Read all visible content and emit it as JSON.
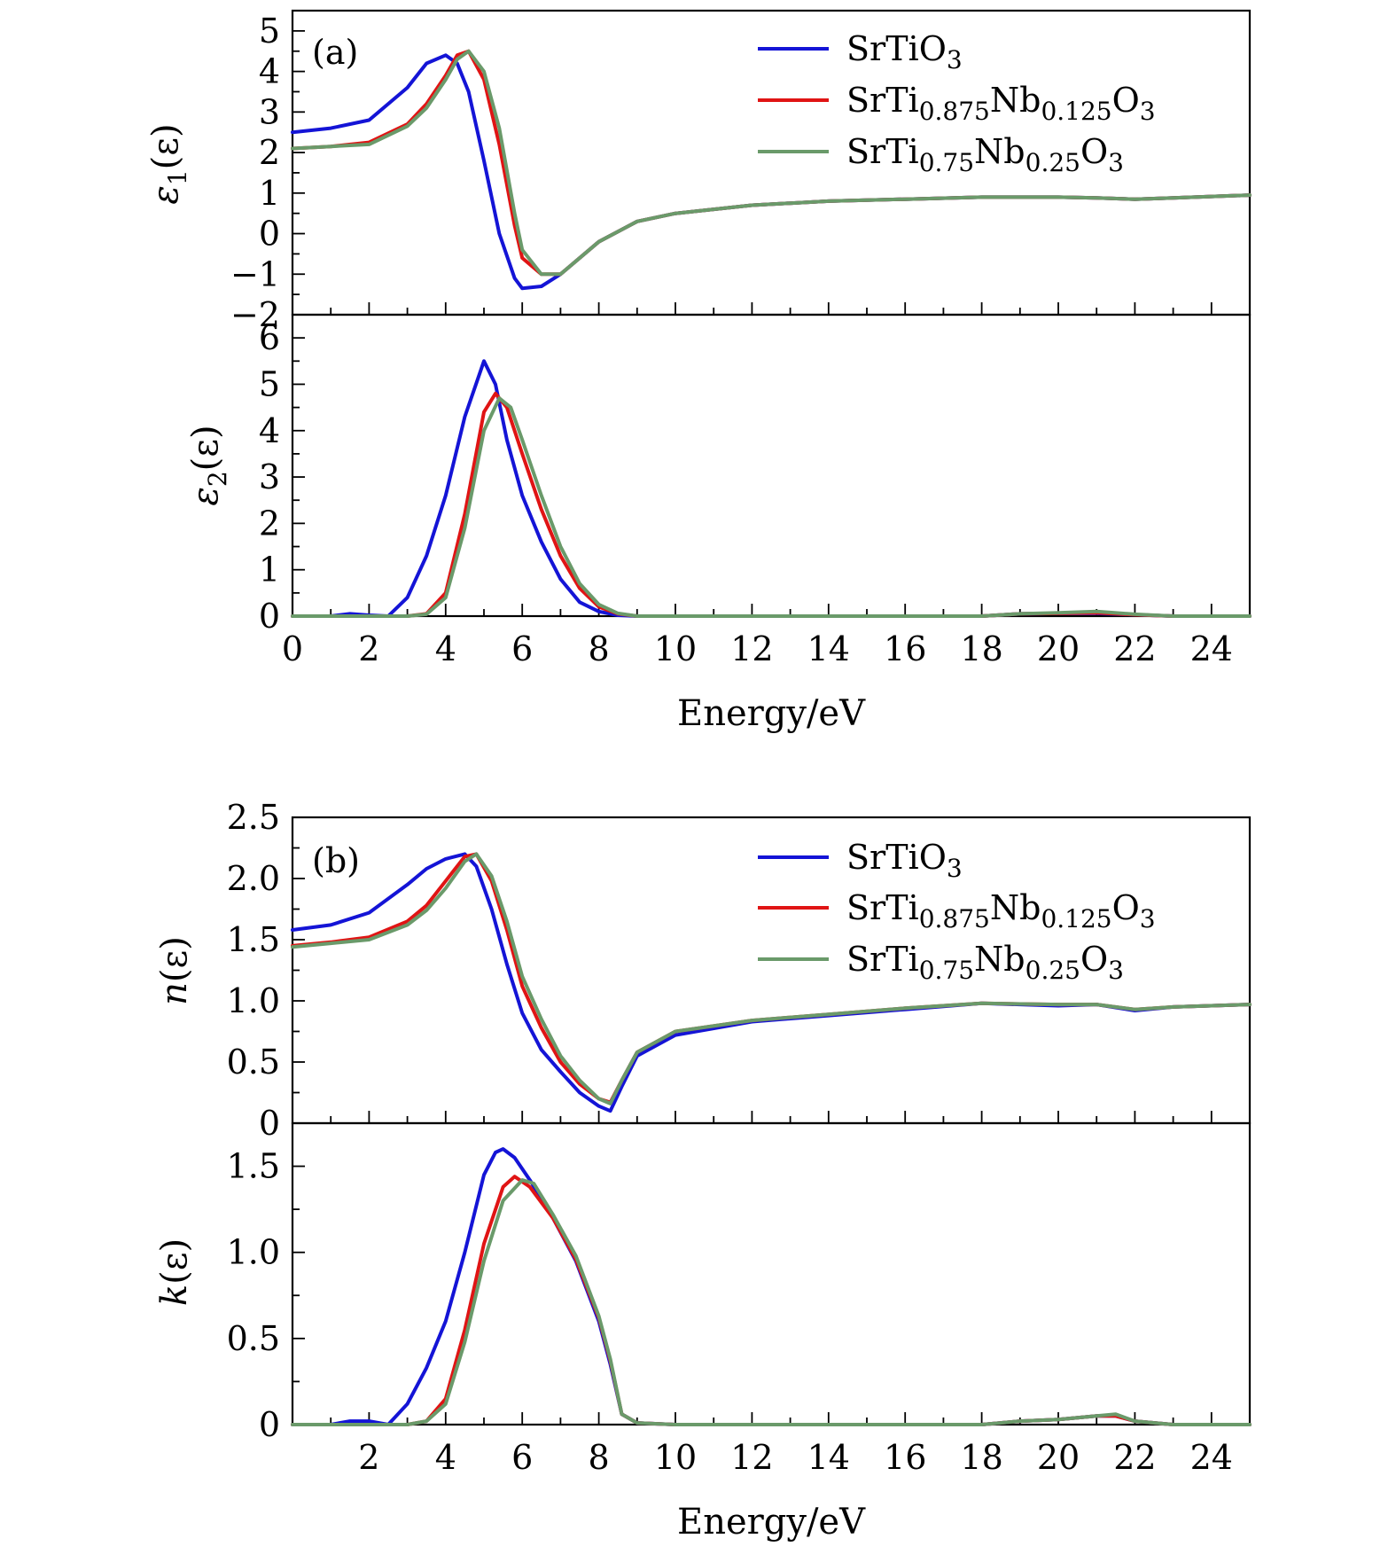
{
  "figure": {
    "colors": {
      "SrTiO3": "#1414d6",
      "Nb0125": "#e01414",
      "Nb025": "#6a9a6a"
    }
  },
  "chart_data": [
    {
      "type": "line",
      "panel_label": "(a)",
      "title": "",
      "xlabel": "Energy/eV",
      "ylabel_main": "ε",
      "ylabel_sub": "1",
      "ylabel_arg": "(ε)",
      "xlim": [
        0,
        25
      ],
      "ylim": [
        -2,
        5.5
      ],
      "xticks": [
        0,
        2,
        4,
        6,
        8,
        10,
        12,
        14,
        16,
        18,
        20,
        22,
        24
      ],
      "yticks": [
        -2,
        -1,
        0,
        1,
        2,
        3,
        4,
        5
      ],
      "ytick_labels": [
        "−2",
        "−1",
        "0",
        "1",
        "2",
        "3",
        "4",
        "5"
      ],
      "legend": [
        "SrTiO3",
        "SrTi0.875Nb0.125O3",
        "SrTi0.75Nb0.25O3"
      ],
      "series": [
        {
          "name": "SrTiO3",
          "x": [
            0,
            1,
            2,
            3,
            3.5,
            4,
            4.3,
            4.6,
            5,
            5.4,
            5.8,
            6,
            6.5,
            7,
            8,
            9,
            10,
            12,
            14,
            16,
            18,
            20,
            21,
            22,
            23,
            25
          ],
          "values": [
            2.5,
            2.6,
            2.8,
            3.6,
            4.2,
            4.4,
            4.2,
            3.5,
            1.8,
            0,
            -1.1,
            -1.35,
            -1.3,
            -1.0,
            -0.2,
            0.3,
            0.5,
            0.7,
            0.8,
            0.85,
            0.9,
            0.9,
            0.88,
            0.85,
            0.88,
            0.95
          ]
        },
        {
          "name": "SrTi0.875Nb0.125O3",
          "x": [
            0,
            1,
            2,
            3,
            3.5,
            4,
            4.3,
            4.6,
            5,
            5.4,
            5.8,
            6,
            6.5,
            7,
            8,
            9,
            10,
            12,
            14,
            16,
            18,
            20,
            21,
            22,
            23,
            25
          ],
          "values": [
            2.1,
            2.15,
            2.25,
            2.7,
            3.2,
            3.9,
            4.4,
            4.5,
            3.8,
            2.2,
            0.2,
            -0.6,
            -1.0,
            -1.0,
            -0.2,
            0.3,
            0.5,
            0.7,
            0.8,
            0.85,
            0.9,
            0.9,
            0.88,
            0.85,
            0.88,
            0.95
          ]
        },
        {
          "name": "SrTi0.75Nb0.25O3",
          "x": [
            0,
            1,
            2,
            3,
            3.5,
            4,
            4.3,
            4.6,
            5,
            5.4,
            5.8,
            6,
            6.5,
            7,
            8,
            9,
            10,
            12,
            14,
            16,
            18,
            20,
            21,
            22,
            23,
            25
          ],
          "values": [
            2.1,
            2.15,
            2.2,
            2.65,
            3.1,
            3.8,
            4.3,
            4.5,
            4.0,
            2.6,
            0.5,
            -0.4,
            -1.0,
            -1.0,
            -0.2,
            0.3,
            0.5,
            0.7,
            0.8,
            0.85,
            0.9,
            0.9,
            0.88,
            0.85,
            0.88,
            0.95
          ]
        }
      ]
    },
    {
      "type": "line",
      "title": "",
      "xlabel": "Energy/eV",
      "ylabel_main": "ε",
      "ylabel_sub": "2",
      "ylabel_arg": "(ε)",
      "xlim": [
        0,
        25
      ],
      "ylim": [
        0,
        6.5
      ],
      "xticks": [
        0,
        2,
        4,
        6,
        8,
        10,
        12,
        14,
        16,
        18,
        20,
        22,
        24
      ],
      "yticks": [
        0,
        1,
        2,
        3,
        4,
        5,
        6
      ],
      "ytick_labels": [
        "0",
        "1",
        "2",
        "3",
        "4",
        "5",
        "6"
      ],
      "series": [
        {
          "name": "SrTiO3",
          "x": [
            0,
            1,
            1.5,
            2,
            2.5,
            3,
            3.5,
            4,
            4.5,
            5,
            5.3,
            5.6,
            6,
            6.5,
            7,
            7.5,
            8,
            8.5,
            9,
            10,
            12,
            16,
            18,
            19,
            20,
            21,
            22,
            23,
            25
          ],
          "values": [
            0,
            0,
            0.05,
            0.02,
            0,
            0.4,
            1.3,
            2.6,
            4.3,
            5.5,
            5.0,
            3.8,
            2.6,
            1.6,
            0.8,
            0.3,
            0.1,
            0.02,
            0,
            0,
            0,
            0,
            0,
            0.05,
            0.06,
            0.06,
            0.03,
            0,
            0
          ]
        },
        {
          "name": "SrTi0.875Nb0.125O3",
          "x": [
            0,
            1,
            2,
            3,
            3.5,
            4,
            4.5,
            5,
            5.3,
            5.6,
            6,
            6.5,
            7,
            7.5,
            8,
            8.5,
            9,
            10,
            12,
            16,
            18,
            19,
            20,
            21,
            22,
            23,
            25
          ],
          "values": [
            0,
            0,
            0,
            0,
            0.05,
            0.5,
            2.2,
            4.4,
            4.8,
            4.5,
            3.5,
            2.3,
            1.3,
            0.6,
            0.2,
            0.05,
            0,
            0,
            0,
            0,
            0,
            0.05,
            0.06,
            0.07,
            0.03,
            0,
            0
          ]
        },
        {
          "name": "SrTi0.75Nb0.25O3",
          "x": [
            0,
            1,
            2,
            3,
            3.5,
            4,
            4.5,
            5,
            5.4,
            5.7,
            6,
            6.5,
            7,
            7.5,
            8,
            8.5,
            9,
            10,
            12,
            16,
            18,
            19,
            20,
            21,
            22,
            23,
            25
          ],
          "values": [
            0,
            0,
            0,
            0,
            0.04,
            0.4,
            1.9,
            4.0,
            4.7,
            4.5,
            3.8,
            2.6,
            1.5,
            0.7,
            0.25,
            0.06,
            0,
            0,
            0,
            0,
            0,
            0.05,
            0.07,
            0.1,
            0.04,
            0,
            0
          ]
        }
      ]
    },
    {
      "type": "line",
      "panel_label": "(b)",
      "title": "",
      "xlabel": "Energy/eV",
      "ylabel_main": "n",
      "ylabel_sub": "",
      "ylabel_arg": "(ε)",
      "xlim": [
        0,
        25
      ],
      "ylim": [
        0,
        2.5
      ],
      "xticks": [
        0,
        2,
        4,
        6,
        8,
        10,
        12,
        14,
        16,
        18,
        20,
        22,
        24
      ],
      "yticks": [
        0,
        0.5,
        1.0,
        1.5,
        2.0,
        2.5
      ],
      "ytick_labels": [
        "0",
        "0.5",
        "1.0",
        "1.5",
        "2.0",
        "2.5"
      ],
      "legend": [
        "SrTiO3",
        "SrTi0.875Nb0.125O3",
        "SrTi0.75Nb0.25O3"
      ],
      "series": [
        {
          "name": "SrTiO3",
          "x": [
            0,
            1,
            2,
            3,
            3.5,
            4,
            4.5,
            4.8,
            5.2,
            5.6,
            6,
            6.5,
            7,
            7.5,
            8,
            8.3,
            8.6,
            9,
            10,
            12,
            14,
            16,
            18,
            20,
            21,
            22,
            23,
            25
          ],
          "values": [
            1.58,
            1.62,
            1.72,
            1.95,
            2.08,
            2.16,
            2.2,
            2.1,
            1.75,
            1.3,
            0.9,
            0.6,
            0.42,
            0.25,
            0.14,
            0.1,
            0.3,
            0.55,
            0.72,
            0.83,
            0.88,
            0.93,
            0.98,
            0.96,
            0.97,
            0.92,
            0.95,
            0.97
          ]
        },
        {
          "name": "SrTi0.875Nb0.125O3",
          "x": [
            0,
            1,
            2,
            3,
            3.5,
            4,
            4.5,
            4.8,
            5.2,
            5.6,
            6,
            6.5,
            7,
            7.5,
            8,
            8.3,
            8.6,
            9,
            10,
            12,
            14,
            16,
            18,
            20,
            21,
            22,
            23,
            25
          ],
          "values": [
            1.45,
            1.48,
            1.52,
            1.65,
            1.78,
            1.98,
            2.18,
            2.2,
            1.98,
            1.58,
            1.12,
            0.78,
            0.5,
            0.32,
            0.2,
            0.17,
            0.35,
            0.58,
            0.75,
            0.84,
            0.89,
            0.94,
            0.98,
            0.97,
            0.97,
            0.93,
            0.95,
            0.97
          ]
        },
        {
          "name": "SrTi0.75Nb0.25O3",
          "x": [
            0,
            1,
            2,
            3,
            3.5,
            4,
            4.5,
            4.8,
            5.2,
            5.6,
            6,
            6.5,
            7,
            7.5,
            8,
            8.3,
            8.6,
            9,
            10,
            12,
            14,
            16,
            18,
            20,
            21,
            22,
            23,
            25
          ],
          "values": [
            1.44,
            1.47,
            1.5,
            1.62,
            1.74,
            1.92,
            2.14,
            2.2,
            2.02,
            1.65,
            1.2,
            0.85,
            0.55,
            0.35,
            0.2,
            0.16,
            0.35,
            0.58,
            0.75,
            0.84,
            0.89,
            0.94,
            0.98,
            0.97,
            0.97,
            0.93,
            0.95,
            0.97
          ]
        }
      ]
    },
    {
      "type": "line",
      "title": "",
      "xlabel": "Energy/eV",
      "ylabel_main": "k",
      "ylabel_sub": "",
      "ylabel_arg": "(ε)",
      "xlim": [
        0,
        25
      ],
      "ylim": [
        0,
        1.75
      ],
      "xticks": [
        2,
        4,
        6,
        8,
        10,
        12,
        14,
        16,
        18,
        20,
        22,
        24
      ],
      "yticks": [
        0,
        0.5,
        1.0,
        1.5
      ],
      "ytick_labels": [
        "0",
        "0.5",
        "1.0",
        "1.5"
      ],
      "series": [
        {
          "name": "SrTiO3",
          "x": [
            0,
            1,
            1.5,
            2,
            2.5,
            3,
            3.5,
            4,
            4.5,
            5,
            5.3,
            5.5,
            5.8,
            6.2,
            6.8,
            7.4,
            8,
            8.3,
            8.6,
            9,
            10,
            16,
            18,
            19,
            20,
            21,
            21.5,
            22,
            23,
            25
          ],
          "values": [
            0,
            0,
            0.02,
            0.02,
            0,
            0.12,
            0.33,
            0.6,
            1.0,
            1.45,
            1.58,
            1.6,
            1.55,
            1.42,
            1.2,
            0.95,
            0.6,
            0.35,
            0.06,
            0.01,
            0,
            0,
            0,
            0.02,
            0.03,
            0.05,
            0.05,
            0.02,
            0,
            0
          ]
        },
        {
          "name": "SrTi0.875Nb0.125O3",
          "x": [
            0,
            1,
            2,
            3,
            3.5,
            4,
            4.5,
            5,
            5.5,
            5.8,
            6.2,
            6.8,
            7.4,
            8,
            8.3,
            8.6,
            9,
            10,
            16,
            18,
            19,
            20,
            21,
            21.5,
            22,
            23,
            25
          ],
          "values": [
            0,
            0,
            0,
            0,
            0.02,
            0.15,
            0.55,
            1.05,
            1.38,
            1.44,
            1.38,
            1.2,
            0.96,
            0.62,
            0.37,
            0.06,
            0.01,
            0,
            0,
            0,
            0.02,
            0.03,
            0.05,
            0.05,
            0.02,
            0,
            0
          ]
        },
        {
          "name": "SrTi0.75Nb0.25O3",
          "x": [
            0,
            1,
            2,
            3,
            3.5,
            4,
            4.5,
            5,
            5.5,
            6,
            6.3,
            6.8,
            7.4,
            8,
            8.3,
            8.6,
            9,
            10,
            16,
            18,
            19,
            20,
            21,
            21.5,
            22,
            23,
            25
          ],
          "values": [
            0,
            0,
            0,
            0,
            0.02,
            0.12,
            0.48,
            0.95,
            1.3,
            1.42,
            1.4,
            1.22,
            0.98,
            0.63,
            0.38,
            0.06,
            0.01,
            0,
            0,
            0,
            0.02,
            0.03,
            0.05,
            0.06,
            0.02,
            0,
            0
          ]
        }
      ]
    }
  ]
}
